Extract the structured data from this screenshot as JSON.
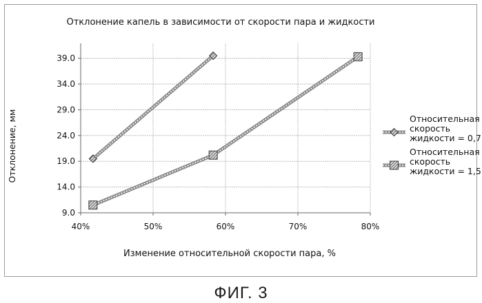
{
  "figure_caption": "ФИГ. 3",
  "chart_data": {
    "type": "line",
    "title": "Отклонение капель в зависимости от скорости пара и жидкости",
    "xlabel": "Изменение относительной скорости пара, %",
    "ylabel": "Отклонение, мм",
    "xlim": [
      40,
      80
    ],
    "ylim": [
      9.0,
      41.5
    ],
    "x_ticks": [
      "40%",
      "50%",
      "60%",
      "70%",
      "80%"
    ],
    "y_ticks": [
      "9.0",
      "14.0",
      "19.0",
      "24.0",
      "29.0",
      "34.0",
      "39.0"
    ],
    "legend_position": "right",
    "series": [
      {
        "name": "Относительная скорость жидкости = 0,7",
        "marker": "small-hatched-diamond",
        "x": [
          41.7,
          58.3
        ],
        "y": [
          19.5,
          39.5
        ]
      },
      {
        "name": "Относительная скорость жидкости = 1,5",
        "marker": "large-hatched-square",
        "x": [
          41.7,
          58.3,
          78.3
        ],
        "y": [
          10.5,
          20.2,
          39.3
        ]
      }
    ],
    "colors": {
      "line": "#7a7a7a",
      "marker": "#555555",
      "grid": "#bdbdbd",
      "text": "#111111"
    }
  }
}
